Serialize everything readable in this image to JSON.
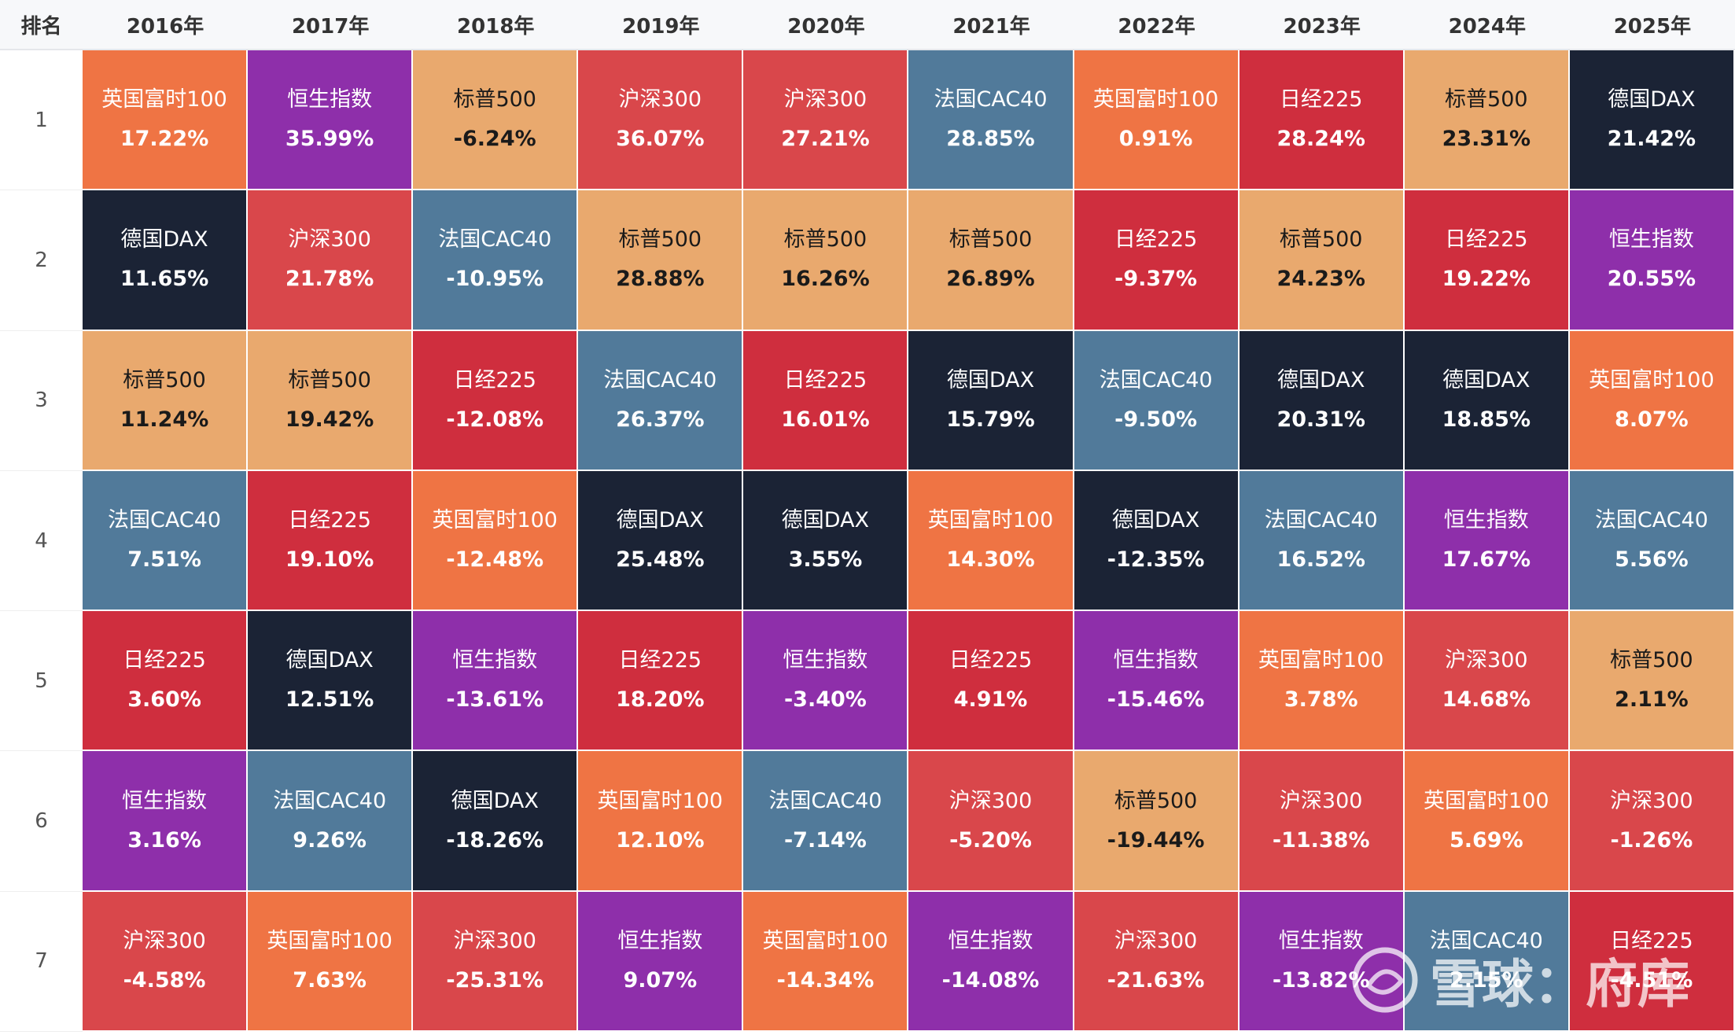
{
  "chart_data": {
    "type": "heatmap",
    "corner_label": "排名",
    "columns": [
      "2016年",
      "2017年",
      "2018年",
      "2019年",
      "2020年",
      "2021年",
      "2022年",
      "2023年",
      "2024年",
      "2025年"
    ],
    "ranks": [
      "1",
      "2",
      "3",
      "4",
      "5",
      "6",
      "7"
    ],
    "index_colors": {
      "英国富时100": "#ef7444",
      "恒生指数": "#8e2faa",
      "标普500": "#e9a96e",
      "沪深300": "#d9474b",
      "法国CAC40": "#517a9a",
      "日经225": "#cf2e3e",
      "德国DAX": "#1b2335"
    },
    "cells": [
      [
        {
          "name": "英国富时100",
          "value": "17.22%"
        },
        {
          "name": "德国DAX",
          "value": "11.65%"
        },
        {
          "name": "标普500",
          "value": "11.24%"
        },
        {
          "name": "法国CAC40",
          "value": "7.51%"
        },
        {
          "name": "日经225",
          "value": "3.60%"
        },
        {
          "name": "恒生指数",
          "value": "3.16%"
        },
        {
          "name": "沪深300",
          "value": "-4.58%"
        }
      ],
      [
        {
          "name": "恒生指数",
          "value": "35.99%"
        },
        {
          "name": "沪深300",
          "value": "21.78%"
        },
        {
          "name": "标普500",
          "value": "19.42%"
        },
        {
          "name": "日经225",
          "value": "19.10%"
        },
        {
          "name": "德国DAX",
          "value": "12.51%"
        },
        {
          "name": "法国CAC40",
          "value": "9.26%"
        },
        {
          "name": "英国富时100",
          "value": "7.63%"
        }
      ],
      [
        {
          "name": "标普500",
          "value": "-6.24%"
        },
        {
          "name": "法国CAC40",
          "value": "-10.95%"
        },
        {
          "name": "日经225",
          "value": "-12.08%"
        },
        {
          "name": "英国富时100",
          "value": "-12.48%"
        },
        {
          "name": "恒生指数",
          "value": "-13.61%"
        },
        {
          "name": "德国DAX",
          "value": "-18.26%"
        },
        {
          "name": "沪深300",
          "value": "-25.31%"
        }
      ],
      [
        {
          "name": "沪深300",
          "value": "36.07%"
        },
        {
          "name": "标普500",
          "value": "28.88%"
        },
        {
          "name": "法国CAC40",
          "value": "26.37%"
        },
        {
          "name": "德国DAX",
          "value": "25.48%"
        },
        {
          "name": "日经225",
          "value": "18.20%"
        },
        {
          "name": "英国富时100",
          "value": "12.10%"
        },
        {
          "name": "恒生指数",
          "value": "9.07%"
        }
      ],
      [
        {
          "name": "沪深300",
          "value": "27.21%"
        },
        {
          "name": "标普500",
          "value": "16.26%"
        },
        {
          "name": "日经225",
          "value": "16.01%"
        },
        {
          "name": "德国DAX",
          "value": "3.55%"
        },
        {
          "name": "恒生指数",
          "value": "-3.40%"
        },
        {
          "name": "法国CAC40",
          "value": "-7.14%"
        },
        {
          "name": "英国富时100",
          "value": "-14.34%"
        }
      ],
      [
        {
          "name": "法国CAC40",
          "value": "28.85%"
        },
        {
          "name": "标普500",
          "value": "26.89%"
        },
        {
          "name": "德国DAX",
          "value": "15.79%"
        },
        {
          "name": "英国富时100",
          "value": "14.30%"
        },
        {
          "name": "日经225",
          "value": "4.91%"
        },
        {
          "name": "沪深300",
          "value": "-5.20%"
        },
        {
          "name": "恒生指数",
          "value": "-14.08%"
        }
      ],
      [
        {
          "name": "英国富时100",
          "value": "0.91%"
        },
        {
          "name": "日经225",
          "value": "-9.37%"
        },
        {
          "name": "法国CAC40",
          "value": "-9.50%"
        },
        {
          "name": "德国DAX",
          "value": "-12.35%"
        },
        {
          "name": "恒生指数",
          "value": "-15.46%"
        },
        {
          "name": "标普500",
          "value": "-19.44%"
        },
        {
          "name": "沪深300",
          "value": "-21.63%"
        }
      ],
      [
        {
          "name": "日经225",
          "value": "28.24%"
        },
        {
          "name": "标普500",
          "value": "24.23%"
        },
        {
          "name": "德国DAX",
          "value": "20.31%"
        },
        {
          "name": "法国CAC40",
          "value": "16.52%"
        },
        {
          "name": "英国富时100",
          "value": "3.78%"
        },
        {
          "name": "沪深300",
          "value": "-11.38%"
        },
        {
          "name": "恒生指数",
          "value": "-13.82%"
        }
      ],
      [
        {
          "name": "标普500",
          "value": "23.31%"
        },
        {
          "name": "日经225",
          "value": "19.22%"
        },
        {
          "name": "德国DAX",
          "value": "18.85%"
        },
        {
          "name": "恒生指数",
          "value": "17.67%"
        },
        {
          "name": "沪深300",
          "value": "14.68%"
        },
        {
          "name": "英国富时100",
          "value": "5.69%"
        },
        {
          "name": "法国CAC40",
          "value": "2.15%"
        }
      ],
      [
        {
          "name": "德国DAX",
          "value": "21.42%"
        },
        {
          "name": "恒生指数",
          "value": "20.55%"
        },
        {
          "name": "英国富时100",
          "value": "8.07%"
        },
        {
          "name": "法国CAC40",
          "value": "5.56%"
        },
        {
          "name": "标普500",
          "value": "2.11%"
        },
        {
          "name": "沪深300",
          "value": "-1.26%"
        },
        {
          "name": "日经225",
          "value": "-4.51%"
        }
      ]
    ],
    "watermark": "雪球：府库"
  }
}
